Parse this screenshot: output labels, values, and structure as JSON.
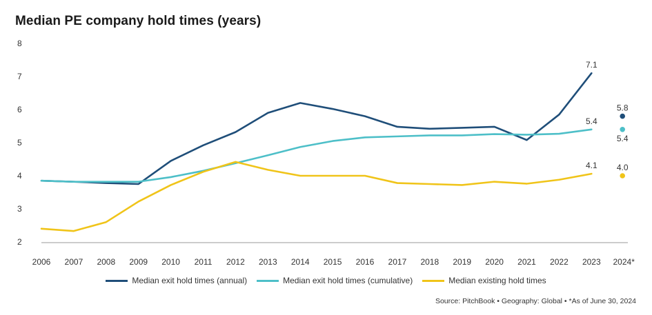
{
  "title": "Median PE company hold times (years)",
  "source": "Source: PitchBook  •  Geography: Global  •  *As of June 30, 2024",
  "colors": {
    "annual": "#1f4e79",
    "cumulative": "#4dbfc8",
    "existing": "#f0c419",
    "axis": "#999999"
  },
  "chart_data": {
    "type": "line",
    "title": "Median PE company hold times (years)",
    "x": [
      "2006",
      "2007",
      "2008",
      "2009",
      "2010",
      "2011",
      "2012",
      "2013",
      "2014",
      "2015",
      "2016",
      "2017",
      "2018",
      "2019",
      "2020",
      "2021",
      "2022",
      "2023",
      "2024*"
    ],
    "ylim": [
      2,
      8
    ],
    "yticks": [
      2,
      3,
      4,
      5,
      6,
      7,
      8
    ],
    "grid": false,
    "legend_position": "bottom",
    "series": [
      {
        "name": "Median exit hold times (annual)",
        "color_key": "annual",
        "values": [
          3.85,
          3.82,
          3.78,
          3.75,
          4.45,
          4.92,
          5.32,
          5.9,
          6.2,
          6.02,
          5.8,
          5.48,
          5.42,
          5.45,
          5.48,
          5.08,
          5.85,
          7.1,
          5.8
        ]
      },
      {
        "name": "Median exit hold times (cumulative)",
        "color_key": "cumulative",
        "values": [
          3.85,
          3.82,
          3.82,
          3.82,
          3.96,
          4.15,
          4.38,
          4.62,
          4.87,
          5.05,
          5.16,
          5.19,
          5.22,
          5.22,
          5.26,
          5.24,
          5.27,
          5.4,
          5.4
        ]
      },
      {
        "name": "Median existing hold times",
        "color_key": "existing",
        "values": [
          2.4,
          2.33,
          2.6,
          3.22,
          3.72,
          4.12,
          4.42,
          4.18,
          4.0,
          4.0,
          4.0,
          3.78,
          3.75,
          3.72,
          3.82,
          3.76,
          3.88,
          4.06,
          4.0
        ]
      }
    ],
    "annotations": [
      {
        "text": "7.1",
        "series": 0,
        "index": 17,
        "pos": "above"
      },
      {
        "text": "5.4",
        "series": 1,
        "index": 17,
        "pos": "above"
      },
      {
        "text": "4.1",
        "series": 2,
        "index": 17,
        "pos": "above"
      },
      {
        "text": "5.8",
        "series": 0,
        "index": 18,
        "pos": "above"
      },
      {
        "text": "5.4",
        "series": 1,
        "index": 18,
        "pos": "below"
      },
      {
        "text": "4.0",
        "series": 2,
        "index": 18,
        "pos": "above"
      }
    ]
  }
}
